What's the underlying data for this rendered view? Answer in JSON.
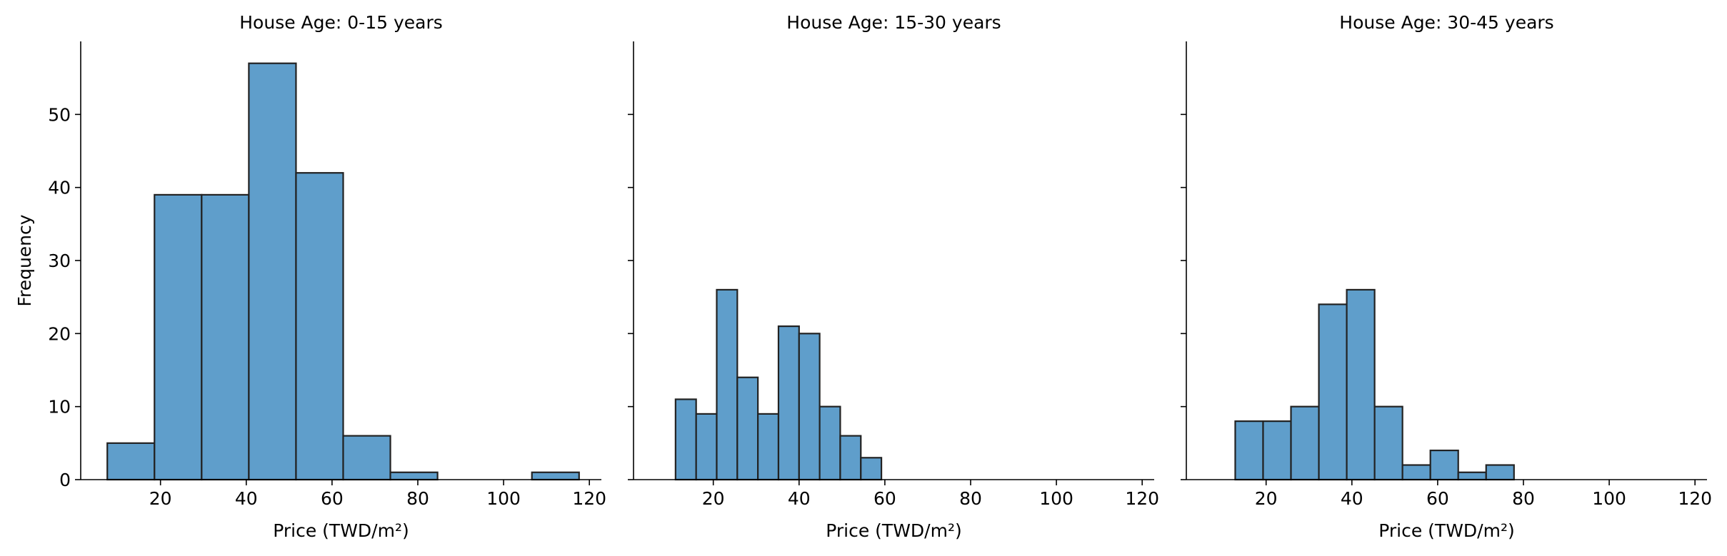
{
  "chart_data": [
    {
      "type": "bar",
      "title": "House Age: 0-15 years",
      "xlabel": "Price (TWD/m²)",
      "ylabel": "Frequency",
      "xlim": [
        1.4,
        122.8
      ],
      "ylim": [
        0,
        60
      ],
      "xticks": [
        20,
        40,
        60,
        80,
        100,
        120
      ],
      "yticks": [
        0,
        10,
        20,
        30,
        40,
        50
      ],
      "bar_color": "#5f9ecb",
      "grid": false,
      "bins": [
        {
          "x0": 7.6,
          "x1": 18.6,
          "count": 5
        },
        {
          "x0": 18.6,
          "x1": 29.6,
          "count": 39
        },
        {
          "x0": 29.6,
          "x1": 40.6,
          "count": 39
        },
        {
          "x0": 40.6,
          "x1": 51.6,
          "count": 57
        },
        {
          "x0": 51.6,
          "x1": 62.6,
          "count": 42
        },
        {
          "x0": 62.6,
          "x1": 73.6,
          "count": 6
        },
        {
          "x0": 73.6,
          "x1": 84.6,
          "count": 1
        },
        {
          "x0": 84.6,
          "x1": 95.6,
          "count": 0
        },
        {
          "x0": 95.6,
          "x1": 106.6,
          "count": 0
        },
        {
          "x0": 106.6,
          "x1": 117.6,
          "count": 1
        }
      ]
    },
    {
      "type": "bar",
      "title": "House Age: 15-30 years",
      "xlabel": "Price (TWD/m²)",
      "ylabel": "",
      "xlim": [
        1.4,
        122.8
      ],
      "ylim": [
        0,
        60
      ],
      "xticks": [
        20,
        40,
        60,
        80,
        100,
        120
      ],
      "yticks": [
        0,
        10,
        20,
        30,
        40,
        50
      ],
      "bar_color": "#5f9ecb",
      "grid": false,
      "bins": [
        {
          "x0": 11.2,
          "x1": 16.0,
          "count": 11
        },
        {
          "x0": 16.0,
          "x1": 20.8,
          "count": 9
        },
        {
          "x0": 20.8,
          "x1": 25.6,
          "count": 26
        },
        {
          "x0": 25.6,
          "x1": 30.4,
          "count": 14
        },
        {
          "x0": 30.4,
          "x1": 35.2,
          "count": 9
        },
        {
          "x0": 35.2,
          "x1": 40.0,
          "count": 21
        },
        {
          "x0": 40.0,
          "x1": 44.8,
          "count": 20
        },
        {
          "x0": 44.8,
          "x1": 49.6,
          "count": 10
        },
        {
          "x0": 49.6,
          "x1": 54.4,
          "count": 6
        },
        {
          "x0": 54.4,
          "x1": 59.2,
          "count": 3
        }
      ]
    },
    {
      "type": "bar",
      "title": "House Age: 30-45 years",
      "xlabel": "Price (TWD/m²)",
      "ylabel": "",
      "xlim": [
        1.4,
        122.8
      ],
      "ylim": [
        0,
        60
      ],
      "xticks": [
        20,
        40,
        60,
        80,
        100,
        120
      ],
      "yticks": [
        0,
        10,
        20,
        30,
        40,
        50
      ],
      "bar_color": "#5f9ecb",
      "grid": false,
      "bins": [
        {
          "x0": 12.8,
          "x1": 19.3,
          "count": 8
        },
        {
          "x0": 19.3,
          "x1": 25.8,
          "count": 8
        },
        {
          "x0": 25.8,
          "x1": 32.3,
          "count": 10
        },
        {
          "x0": 32.3,
          "x1": 38.8,
          "count": 24
        },
        {
          "x0": 38.8,
          "x1": 45.3,
          "count": 26
        },
        {
          "x0": 45.3,
          "x1": 51.8,
          "count": 10
        },
        {
          "x0": 51.8,
          "x1": 58.3,
          "count": 2
        },
        {
          "x0": 58.3,
          "x1": 64.8,
          "count": 4
        },
        {
          "x0": 64.8,
          "x1": 71.3,
          "count": 1
        },
        {
          "x0": 71.3,
          "x1": 77.8,
          "count": 2
        }
      ]
    }
  ]
}
